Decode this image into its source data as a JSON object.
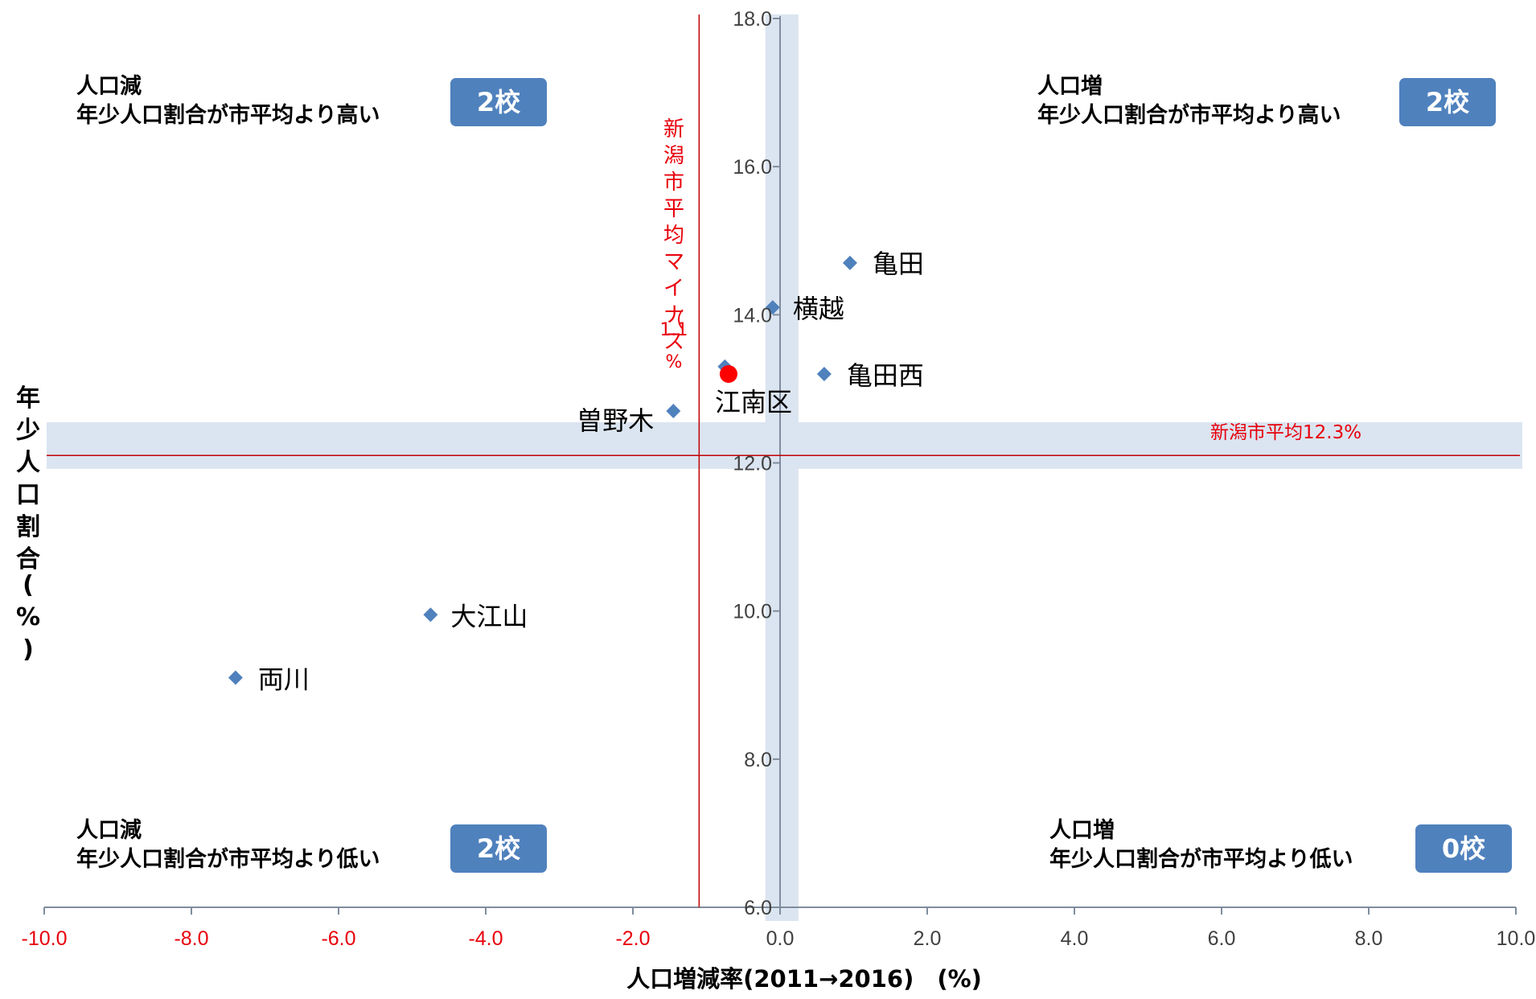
{
  "chart_data": {
    "type": "scatter",
    "xlabel": "人口増減率(2011→2016)　(%)",
    "ylabel": "年少人口割合(%)",
    "xlim": [
      -10.0,
      10.0
    ],
    "ylim": [
      6.0,
      18.0
    ],
    "x_ticks": [
      "-10.0",
      "-8.0",
      "-6.0",
      "-4.0",
      "-2.0",
      "0.0",
      "2.0",
      "4.0",
      "6.0",
      "8.0",
      "10.0"
    ],
    "y_ticks": [
      "6.0",
      "8.0",
      "10.0",
      "12.0",
      "14.0",
      "16.0",
      "18.0"
    ],
    "points": [
      {
        "label": "亀田",
        "x": 0.95,
        "y": 14.7
      },
      {
        "label": "横越",
        "x": -0.1,
        "y": 14.1
      },
      {
        "label": "亀田西",
        "x": 0.6,
        "y": 13.2
      },
      {
        "label": "",
        "x": -0.75,
        "y": 13.3
      },
      {
        "label": "曽野木",
        "x": -1.45,
        "y": 12.7
      },
      {
        "label": "大江山",
        "x": -4.75,
        "y": 9.95
      },
      {
        "label": "両川",
        "x": -7.4,
        "y": 9.1
      }
    ],
    "highlight_point": {
      "label": "江南区",
      "x": -0.7,
      "y": 13.2,
      "color": "#ff0000"
    },
    "reference_lines": {
      "horizontal": {
        "value": 12.3,
        "label": "新潟市平均12.3%",
        "color": "#c00000"
      },
      "vertical": {
        "value": -1.1,
        "label_lines": [
          "新",
          "潟",
          "市",
          "平",
          "均",
          "マ",
          "イ",
          "ナ",
          "ス",
          "（",
          "1.1",
          "%"
        ],
        "color": "#c00000"
      }
    },
    "colors": {
      "marker": "#4f81bd",
      "band": "#dbe5f1",
      "negative_tick": "#e8000b",
      "badge": "#4f81bd"
    }
  },
  "quadrants": {
    "top_left": {
      "line1": "人口減",
      "line2": "年少人口割合が市平均より高い",
      "badge": "2校"
    },
    "top_right": {
      "line1": "人口増",
      "line2": "年少人口割合が市平均より高い",
      "badge": "2校"
    },
    "bottom_left": {
      "line1": "人口減",
      "line2": "年少人口割合が市平均より低い",
      "badge": "2校"
    },
    "bottom_right": {
      "line1": "人口増",
      "line2": "年少人口割合が市平均より低い",
      "badge": "0校"
    }
  },
  "ylabel_chars": [
    "年",
    "少",
    "人",
    "口",
    "割",
    "合",
    "(",
    "%",
    ")"
  ]
}
